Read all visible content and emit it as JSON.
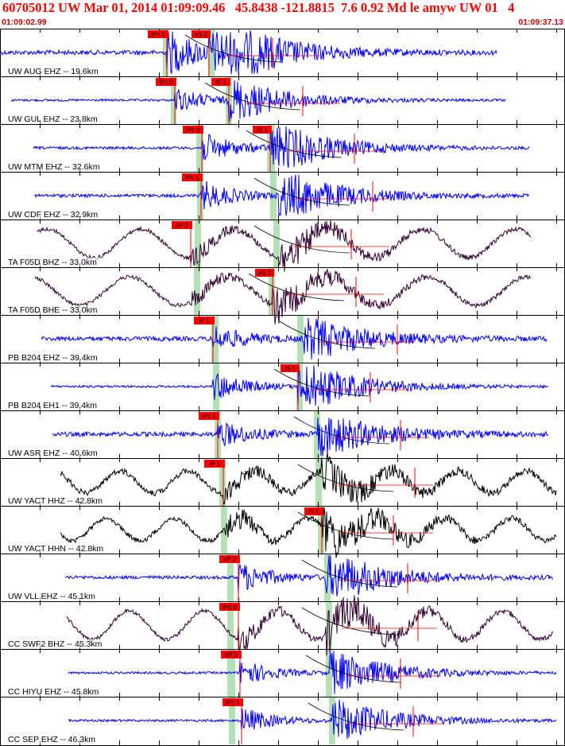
{
  "header": {
    "title": "60705012 UW Mar 01, 2014 01:09:09.46   45.8438 -121.8815  7.6 0.92 Md le amyw UW 01   4",
    "start_time": "01:09:02.99",
    "end_time": "01:09:37.13"
  },
  "colors": {
    "title": "#ff0000",
    "pick_box": "#ff0000",
    "pick_line": "#ff0000",
    "trace_short_period": "#0000ff",
    "trace_broadband": "#330033",
    "trace_strong_motion": "#000000",
    "phase_band": "#b5e0b5",
    "grid": "#000000"
  },
  "traces": [
    {
      "label": "UW AUG EHZ -- 19.6km",
      "color": "trace_short_period",
      "p_pick": "iPc 1",
      "s_pick": "eS 2"
    },
    {
      "label": "UW GUL EHZ -- 23.8km",
      "color": "trace_short_period",
      "p_pick": "iPc 0",
      "s_pick": "iS 1"
    },
    {
      "label": "UW MTM EHZ -- 32.6km",
      "color": "trace_short_period",
      "p_pick": "iPc 0",
      "s_pick": "iS 1"
    },
    {
      "label": "UW CDF EHZ -- 32.9km",
      "color": "trace_short_period",
      "p_pick": "iPc 1",
      "s_pick": ""
    },
    {
      "label": "TA F05D BHZ -- 33.0km",
      "color": "trace_broadband",
      "p_pick": "eP 2",
      "s_pick": ""
    },
    {
      "label": "TA F05D BHE -- 33.0km",
      "color": "trace_broadband",
      "p_pick": "",
      "s_pick": "eS 2"
    },
    {
      "label": "PB B204 EHZ -- 39.4km",
      "color": "trace_short_period",
      "p_pick": "iP 1",
      "s_pick": ""
    },
    {
      "label": "PB B204 EH1 -- 39.4km",
      "color": "trace_short_period",
      "p_pick": "",
      "s_pick": "iS 1"
    },
    {
      "label": "UW ASR EHZ -- 40.6km",
      "color": "trace_short_period",
      "p_pick": "iPc 1",
      "s_pick": ""
    },
    {
      "label": "UW YACT HHZ -- 42.8km",
      "color": "trace_strong_motion",
      "p_pick": "iP 1",
      "s_pick": ""
    },
    {
      "label": "UW YACT HHN -- 42.8km",
      "color": "trace_strong_motion",
      "p_pick": "",
      "s_pick": "iS 1"
    },
    {
      "label": "UW VLL EHZ -- 45.1km",
      "color": "trace_short_period",
      "p_pick": "eP 2",
      "s_pick": ""
    },
    {
      "label": "CC SWF2 BHZ -- 45.3km",
      "color": "trace_broadband",
      "p_pick": "iPc 0",
      "s_pick": ""
    },
    {
      "label": "CC HIYU EHZ -- 45.8km",
      "color": "trace_short_period",
      "p_pick": "eP 2",
      "s_pick": ""
    },
    {
      "label": "CC SEP EHZ -- 46.3km",
      "color": "trace_short_period",
      "p_pick": "iPc 1",
      "s_pick": ""
    }
  ]
}
